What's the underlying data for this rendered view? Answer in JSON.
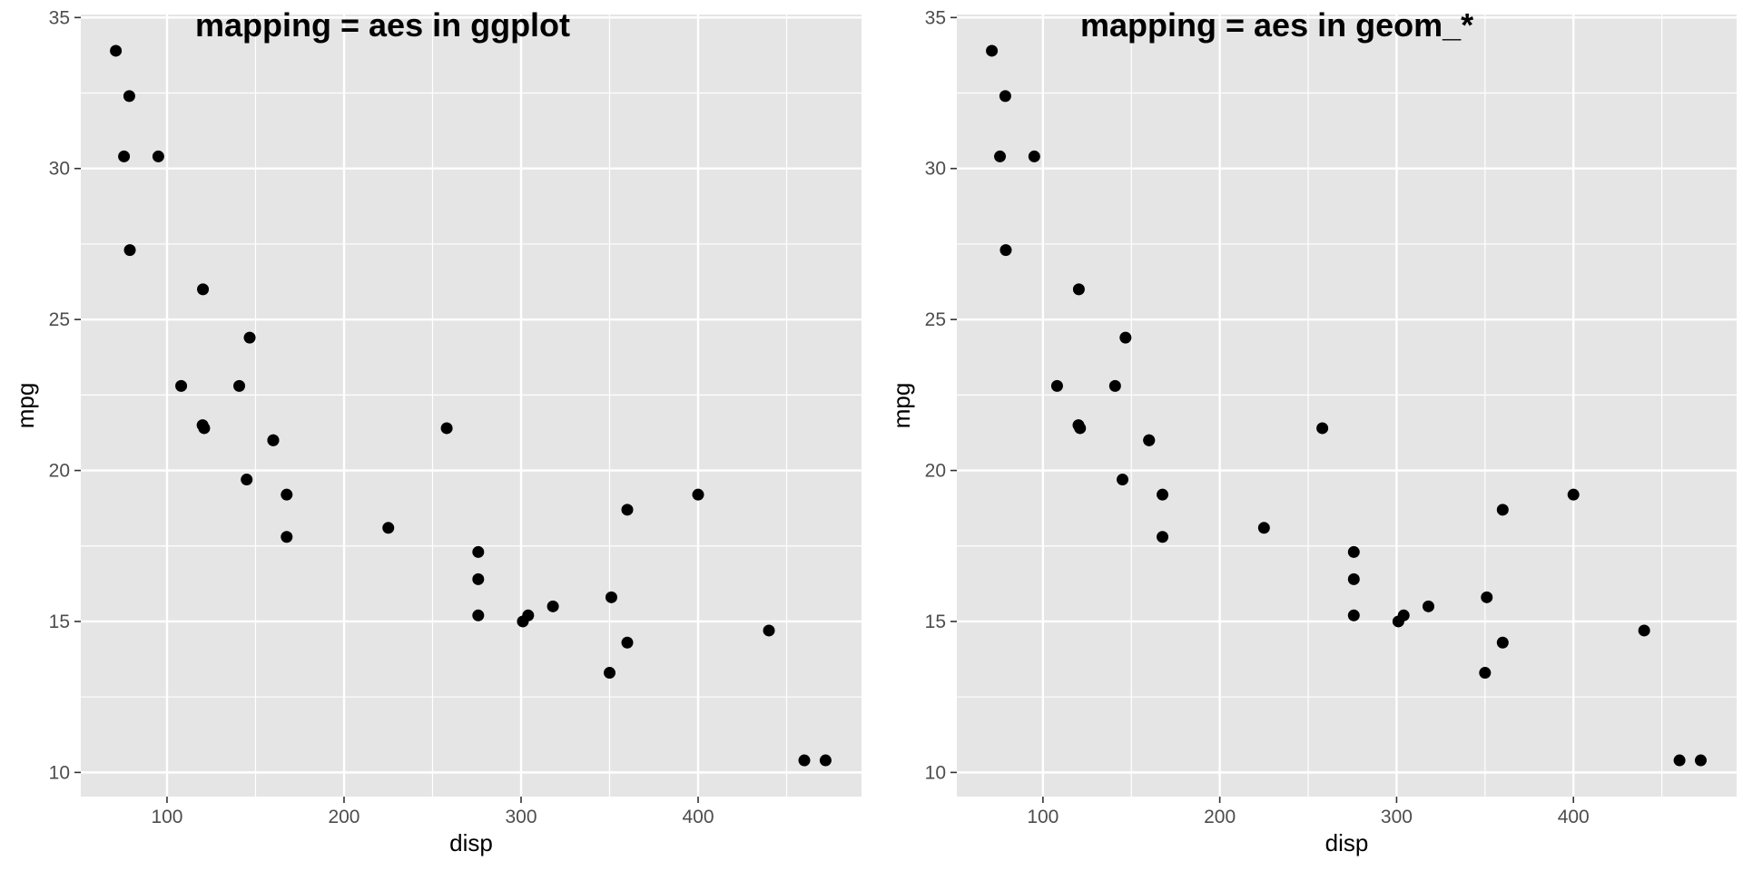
{
  "chart_data": [
    {
      "type": "scatter",
      "title": "mapping = aes in ggplot",
      "xlabel": "disp",
      "ylabel": "mpg",
      "xlim": [
        51.3,
        492.3
      ],
      "ylim": [
        9.2,
        35.1
      ],
      "xticks": [
        100,
        200,
        300,
        400
      ],
      "yticks": [
        10,
        15,
        20,
        25,
        30,
        35
      ],
      "grid": true,
      "points": [
        {
          "x": 160,
          "y": 21.0
        },
        {
          "x": 160,
          "y": 21.0
        },
        {
          "x": 108,
          "y": 22.8
        },
        {
          "x": 258,
          "y": 21.4
        },
        {
          "x": 360,
          "y": 18.7
        },
        {
          "x": 225,
          "y": 18.1
        },
        {
          "x": 360,
          "y": 14.3
        },
        {
          "x": 146.7,
          "y": 24.4
        },
        {
          "x": 140.8,
          "y": 22.8
        },
        {
          "x": 167.6,
          "y": 19.2
        },
        {
          "x": 167.6,
          "y": 17.8
        },
        {
          "x": 275.8,
          "y": 16.4
        },
        {
          "x": 275.8,
          "y": 17.3
        },
        {
          "x": 275.8,
          "y": 15.2
        },
        {
          "x": 472,
          "y": 10.4
        },
        {
          "x": 460,
          "y": 10.4
        },
        {
          "x": 440,
          "y": 14.7
        },
        {
          "x": 78.7,
          "y": 32.4
        },
        {
          "x": 75.7,
          "y": 30.4
        },
        {
          "x": 71.1,
          "y": 33.9
        },
        {
          "x": 120.1,
          "y": 21.5
        },
        {
          "x": 318,
          "y": 15.5
        },
        {
          "x": 304,
          "y": 15.2
        },
        {
          "x": 350,
          "y": 13.3
        },
        {
          "x": 400,
          "y": 19.2
        },
        {
          "x": 79,
          "y": 27.3
        },
        {
          "x": 120.3,
          "y": 26.0
        },
        {
          "x": 95.1,
          "y": 30.4
        },
        {
          "x": 351,
          "y": 15.8
        },
        {
          "x": 145,
          "y": 19.7
        },
        {
          "x": 301,
          "y": 15.0
        },
        {
          "x": 121,
          "y": 21.4
        }
      ]
    },
    {
      "type": "scatter",
      "title": "mapping = aes in geom_*",
      "xlabel": "disp",
      "ylabel": "mpg",
      "xlim": [
        51.3,
        492.3
      ],
      "ylim": [
        9.2,
        35.1
      ],
      "xticks": [
        100,
        200,
        300,
        400
      ],
      "yticks": [
        10,
        15,
        20,
        25,
        30,
        35
      ],
      "grid": true,
      "points": [
        {
          "x": 160,
          "y": 21.0
        },
        {
          "x": 160,
          "y": 21.0
        },
        {
          "x": 108,
          "y": 22.8
        },
        {
          "x": 258,
          "y": 21.4
        },
        {
          "x": 360,
          "y": 18.7
        },
        {
          "x": 225,
          "y": 18.1
        },
        {
          "x": 360,
          "y": 14.3
        },
        {
          "x": 146.7,
          "y": 24.4
        },
        {
          "x": 140.8,
          "y": 22.8
        },
        {
          "x": 167.6,
          "y": 19.2
        },
        {
          "x": 167.6,
          "y": 17.8
        },
        {
          "x": 275.8,
          "y": 16.4
        },
        {
          "x": 275.8,
          "y": 17.3
        },
        {
          "x": 275.8,
          "y": 15.2
        },
        {
          "x": 472,
          "y": 10.4
        },
        {
          "x": 460,
          "y": 10.4
        },
        {
          "x": 440,
          "y": 14.7
        },
        {
          "x": 78.7,
          "y": 32.4
        },
        {
          "x": 75.7,
          "y": 30.4
        },
        {
          "x": 71.1,
          "y": 33.9
        },
        {
          "x": 120.1,
          "y": 21.5
        },
        {
          "x": 318,
          "y": 15.5
        },
        {
          "x": 304,
          "y": 15.2
        },
        {
          "x": 350,
          "y": 13.3
        },
        {
          "x": 400,
          "y": 19.2
        },
        {
          "x": 79,
          "y": 27.3
        },
        {
          "x": 120.3,
          "y": 26.0
        },
        {
          "x": 95.1,
          "y": 30.4
        },
        {
          "x": 351,
          "y": 15.8
        },
        {
          "x": 145,
          "y": 19.7
        },
        {
          "x": 301,
          "y": 15.0
        },
        {
          "x": 121,
          "y": 21.4
        }
      ]
    }
  ]
}
